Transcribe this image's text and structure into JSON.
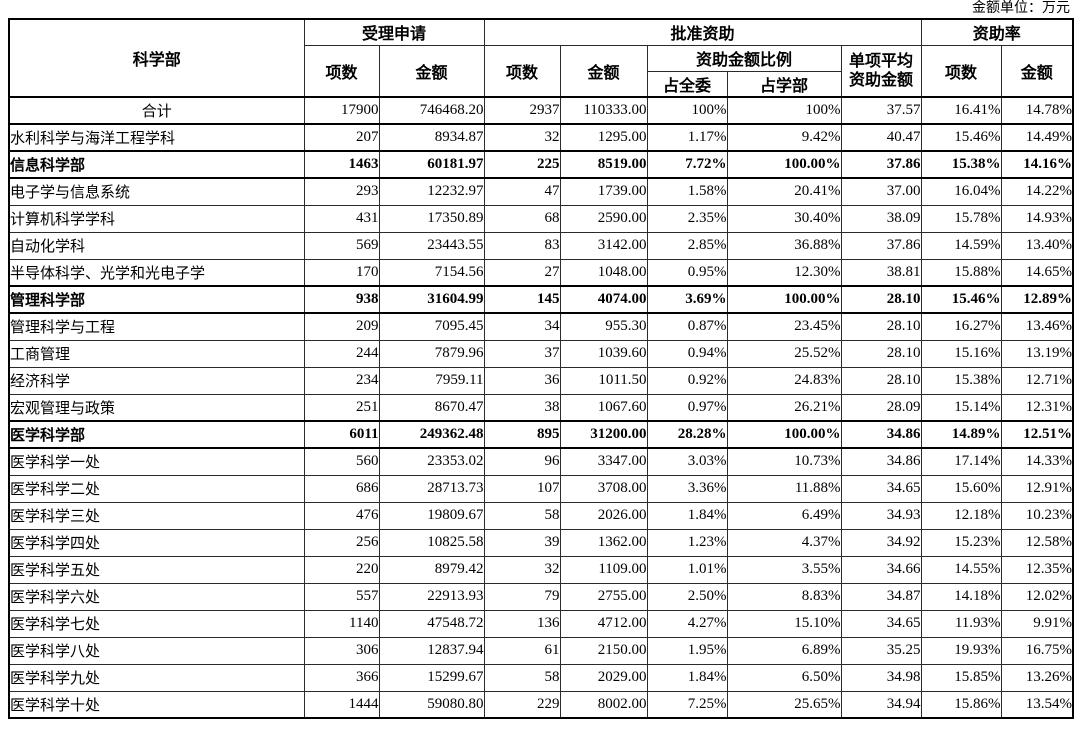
{
  "unit_note": "金额单位：万元",
  "table": {
    "header": {
      "dept": "科学部",
      "accept_group": "受理申请",
      "approve_group": "批准资助",
      "rate_group": "资助率",
      "items": "项数",
      "amount": "金额",
      "ratio_group": "资助金额比例",
      "of_committee": "占全委",
      "of_dept": "占学部",
      "avg_line1": "单项平均",
      "avg_line2": "资助金额",
      "rate_items": "项数",
      "rate_amount": "金额"
    },
    "rows": [
      {
        "name": "合计",
        "center": true,
        "bold": false,
        "values": [
          "17900",
          "746468.20",
          "2937",
          "110333.00",
          "100%",
          "100%",
          "37.57",
          "16.41%",
          "14.78%"
        ]
      },
      {
        "name": "水利科学与海洋工程学科",
        "center": false,
        "bold": false,
        "values": [
          "207",
          "8934.87",
          "32",
          "1295.00",
          "1.17%",
          "9.42%",
          "40.47",
          "15.46%",
          "14.49%"
        ]
      },
      {
        "name": "信息科学部",
        "center": false,
        "bold": true,
        "values": [
          "1463",
          "60181.97",
          "225",
          "8519.00",
          "7.72%",
          "100.00%",
          "37.86",
          "15.38%",
          "14.16%"
        ]
      },
      {
        "name": "电子学与信息系统",
        "center": false,
        "bold": false,
        "values": [
          "293",
          "12232.97",
          "47",
          "1739.00",
          "1.58%",
          "20.41%",
          "37.00",
          "16.04%",
          "14.22%"
        ]
      },
      {
        "name": "计算机科学学科",
        "center": false,
        "bold": false,
        "values": [
          "431",
          "17350.89",
          "68",
          "2590.00",
          "2.35%",
          "30.40%",
          "38.09",
          "15.78%",
          "14.93%"
        ]
      },
      {
        "name": "自动化学科",
        "center": false,
        "bold": false,
        "values": [
          "569",
          "23443.55",
          "83",
          "3142.00",
          "2.85%",
          "36.88%",
          "37.86",
          "14.59%",
          "13.40%"
        ]
      },
      {
        "name": "半导体科学、光学和光电子学",
        "center": false,
        "bold": false,
        "values": [
          "170",
          "7154.56",
          "27",
          "1048.00",
          "0.95%",
          "12.30%",
          "38.81",
          "15.88%",
          "14.65%"
        ]
      },
      {
        "name": "管理科学部",
        "center": false,
        "bold": true,
        "values": [
          "938",
          "31604.99",
          "145",
          "4074.00",
          "3.69%",
          "100.00%",
          "28.10",
          "15.46%",
          "12.89%"
        ]
      },
      {
        "name": "管理科学与工程",
        "center": false,
        "bold": false,
        "values": [
          "209",
          "7095.45",
          "34",
          "955.30",
          "0.87%",
          "23.45%",
          "28.10",
          "16.27%",
          "13.46%"
        ]
      },
      {
        "name": "工商管理",
        "center": false,
        "bold": false,
        "values": [
          "244",
          "7879.96",
          "37",
          "1039.60",
          "0.94%",
          "25.52%",
          "28.10",
          "15.16%",
          "13.19%"
        ]
      },
      {
        "name": "经济科学",
        "center": false,
        "bold": false,
        "values": [
          "234",
          "7959.11",
          "36",
          "1011.50",
          "0.92%",
          "24.83%",
          "28.10",
          "15.38%",
          "12.71%"
        ]
      },
      {
        "name": "宏观管理与政策",
        "center": false,
        "bold": false,
        "values": [
          "251",
          "8670.47",
          "38",
          "1067.60",
          "0.97%",
          "26.21%",
          "28.09",
          "15.14%",
          "12.31%"
        ]
      },
      {
        "name": "医学科学部",
        "center": false,
        "bold": true,
        "values": [
          "6011",
          "249362.48",
          "895",
          "31200.00",
          "28.28%",
          "100.00%",
          "34.86",
          "14.89%",
          "12.51%"
        ]
      },
      {
        "name": "医学科学一处",
        "center": false,
        "bold": false,
        "values": [
          "560",
          "23353.02",
          "96",
          "3347.00",
          "3.03%",
          "10.73%",
          "34.86",
          "17.14%",
          "14.33%"
        ]
      },
      {
        "name": "医学科学二处",
        "center": false,
        "bold": false,
        "values": [
          "686",
          "28713.73",
          "107",
          "3708.00",
          "3.36%",
          "11.88%",
          "34.65",
          "15.60%",
          "12.91%"
        ]
      },
      {
        "name": "医学科学三处",
        "center": false,
        "bold": false,
        "values": [
          "476",
          "19809.67",
          "58",
          "2026.00",
          "1.84%",
          "6.49%",
          "34.93",
          "12.18%",
          "10.23%"
        ]
      },
      {
        "name": "医学科学四处",
        "center": false,
        "bold": false,
        "values": [
          "256",
          "10825.58",
          "39",
          "1362.00",
          "1.23%",
          "4.37%",
          "34.92",
          "15.23%",
          "12.58%"
        ]
      },
      {
        "name": "医学科学五处",
        "center": false,
        "bold": false,
        "values": [
          "220",
          "8979.42",
          "32",
          "1109.00",
          "1.01%",
          "3.55%",
          "34.66",
          "14.55%",
          "12.35%"
        ]
      },
      {
        "name": "医学科学六处",
        "center": false,
        "bold": false,
        "values": [
          "557",
          "22913.93",
          "79",
          "2755.00",
          "2.50%",
          "8.83%",
          "34.87",
          "14.18%",
          "12.02%"
        ]
      },
      {
        "name": "医学科学七处",
        "center": false,
        "bold": false,
        "values": [
          "1140",
          "47548.72",
          "136",
          "4712.00",
          "4.27%",
          "15.10%",
          "34.65",
          "11.93%",
          "9.91%"
        ]
      },
      {
        "name": "医学科学八处",
        "center": false,
        "bold": false,
        "values": [
          "306",
          "12837.94",
          "61",
          "2150.00",
          "1.95%",
          "6.89%",
          "35.25",
          "19.93%",
          "16.75%"
        ]
      },
      {
        "name": "医学科学九处",
        "center": false,
        "bold": false,
        "values": [
          "366",
          "15299.67",
          "58",
          "2029.00",
          "1.84%",
          "6.50%",
          "34.98",
          "15.85%",
          "13.26%"
        ]
      },
      {
        "name": "医学科学十处",
        "center": false,
        "bold": false,
        "values": [
          "1444",
          "59080.80",
          "229",
          "8002.00",
          "7.25%",
          "25.65%",
          "34.94",
          "15.86%",
          "13.54%"
        ]
      }
    ]
  }
}
